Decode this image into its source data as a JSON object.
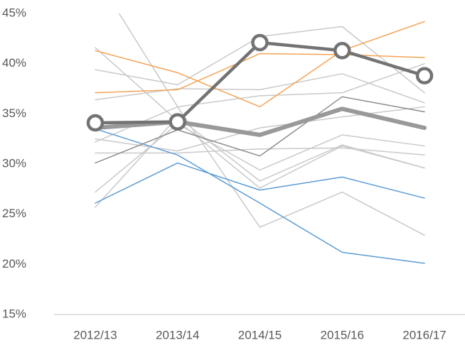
{
  "chart_data": {
    "type": "line",
    "categories": [
      "2012/13",
      "2013/14",
      "2014/15",
      "2015/16",
      "2016/17"
    ],
    "ylim": [
      15,
      45
    ],
    "yticks": [
      {
        "value": 15,
        "label": "15%"
      },
      {
        "value": 20,
        "label": "20%"
      },
      {
        "value": 25,
        "label": "25%"
      },
      {
        "value": 30,
        "label": "30%"
      },
      {
        "value": 35,
        "label": "35%"
      },
      {
        "value": 40,
        "label": "40%"
      },
      {
        "value": 45,
        "label": "45%"
      }
    ],
    "grid": false,
    "series": [
      {
        "color": "#c9c9c9",
        "line_width": 1.5,
        "values": [
          48.8,
          35.7,
          23.7,
          27.2,
          22.9
        ]
      },
      {
        "color": "#c9c9c9",
        "line_width": 1.5,
        "values": [
          41.6,
          34.3,
          27.6,
          31.8,
          29.6
        ]
      },
      {
        "color": "#c9c9c9",
        "line_width": 1.5,
        "values": [
          39.4,
          37.9,
          42.7,
          43.7,
          37.1
        ]
      },
      {
        "color": "#c9c9c9",
        "line_width": 1.5,
        "values": [
          36.4,
          37.5,
          37.4,
          39.0,
          36.1
        ]
      },
      {
        "color": "#c9c9c9",
        "line_width": 1.5,
        "values": [
          32.2,
          35.7,
          36.8,
          37.1,
          40.0
        ]
      },
      {
        "color": "#c9c9c9",
        "line_width": 1.5,
        "values": [
          31.1,
          31.1,
          31.5,
          31.6,
          30.9
        ]
      },
      {
        "color": "#c9c9c9",
        "line_width": 1.5,
        "values": [
          27.2,
          34.0,
          29.4,
          32.9,
          31.8
        ]
      },
      {
        "color": "#c9c9c9",
        "line_width": 1.5,
        "values": [
          25.7,
          34.7,
          28.3,
          31.9,
          29.6
        ]
      },
      {
        "color": "#c9c9c9",
        "line_width": 1.5,
        "values": [
          32.5,
          31.3,
          33.6,
          34.7,
          35.7
        ]
      },
      {
        "color": "#f4a354",
        "line_width": 1.5,
        "values": [
          41.3,
          39.1,
          35.7,
          41.3,
          44.2
        ]
      },
      {
        "color": "#f4a354",
        "line_width": 1.5,
        "values": [
          37.1,
          37.4,
          41.0,
          40.9,
          40.6
        ]
      },
      {
        "color": "#5b9bd5",
        "line_width": 1.5,
        "values": [
          33.5,
          30.9,
          26.1,
          21.2,
          20.1
        ]
      },
      {
        "color": "#5b9bd5",
        "line_width": 1.5,
        "values": [
          26.1,
          30.1,
          27.4,
          28.7,
          26.6
        ]
      },
      {
        "color": "#8c8c8c",
        "line_width": 1.5,
        "values": [
          30.1,
          33.4,
          30.8,
          36.7,
          35.2
        ]
      },
      {
        "color": "#999999",
        "line_width": 6,
        "values": [
          33.6,
          34.2,
          32.9,
          35.5,
          33.6
        ]
      },
      {
        "color": "#737373",
        "line_width": 4.5,
        "marker": "circle",
        "values": [
          34.1,
          34.2,
          42.1,
          41.3,
          38.8
        ]
      }
    ]
  }
}
